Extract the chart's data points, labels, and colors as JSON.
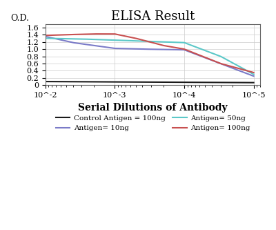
{
  "title": "ELISA Result",
  "ylabel": "O.D.",
  "xlabel": "Serial Dilutions of Antibody",
  "x_ticks": [
    0.01,
    0.001,
    0.0001,
    1e-05
  ],
  "x_tick_labels": [
    "10^-2",
    "10^-3",
    "10^-4",
    "10^-5"
  ],
  "ylim": [
    0,
    1.7
  ],
  "y_ticks": [
    0,
    0.2,
    0.4,
    0.6,
    0.8,
    1.0,
    1.2,
    1.4,
    1.6
  ],
  "lines": {
    "control": {
      "label": "Control Antigen = 100ng",
      "color": "#1a1a1a",
      "x": [
        0.01,
        0.001,
        0.0001,
        1e-05
      ],
      "y": [
        0.1,
        0.09,
        0.08,
        0.07
      ]
    },
    "antigen_10ng": {
      "label": "Antigen= 10ng",
      "color": "#7B7BC8",
      "x": [
        0.01,
        0.001,
        0.0001,
        1e-05
      ],
      "y": [
        1.35,
        1.02,
        1.0,
        0.25
      ]
    },
    "antigen_50ng": {
      "label": "Antigen= 50ng",
      "color": "#5BC8C8",
      "x": [
        0.01,
        0.001,
        0.0001,
        1e-05
      ],
      "y": [
        1.3,
        1.25,
        1.18,
        0.3
      ]
    },
    "antigen_100ng": {
      "label": "Antigen= 100ng",
      "color": "#C85050",
      "x": [
        0.01,
        0.001,
        0.0001,
        1e-05
      ],
      "y": [
        1.38,
        1.42,
        1.0,
        0.35
      ]
    }
  },
  "background_color": "#ffffff",
  "title_fontsize": 13,
  "axis_label_fontsize": 9,
  "tick_fontsize": 8,
  "legend_fontsize": 7.5
}
